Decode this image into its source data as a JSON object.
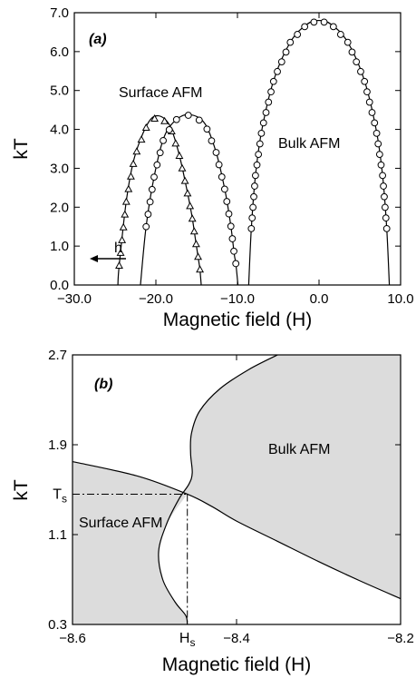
{
  "colors": {
    "fill": "#dcdcdc",
    "line": "#000000",
    "background": "#ffffff"
  },
  "chart_data": [
    {
      "panel": "(a)",
      "type": "line",
      "xlabel": "Magnetic field (H)",
      "ylabel": "kT",
      "xlim": [
        -30,
        10
      ],
      "ylim": [
        0,
        7
      ],
      "x_ticks": [
        "−30.0",
        "−20.0",
        "−10.0",
        "0.0",
        "10.0"
      ],
      "y_ticks": [
        "0.0",
        "1.0",
        "2.0",
        "3.0",
        "4.0",
        "5.0",
        "6.0",
        "7.0"
      ],
      "annotations": [
        "Surface AFM",
        "Bulk AFM",
        "h"
      ],
      "grid": false,
      "series": [
        {
          "marker": "triangle",
          "x": [
            -24.5,
            -23.6,
            -22.6,
            -21.0,
            -19.7,
            -18.3,
            -17.2,
            -16.3,
            -15.6,
            -15.1,
            -14.7,
            -14.6
          ],
          "y": [
            0.5,
            2.2,
            3.3,
            4.15,
            4.35,
            4.1,
            3.4,
            2.55,
            1.8,
            1.1,
            0.55,
            0.4
          ]
        },
        {
          "marker": "circle",
          "x": [
            -21.2,
            -20.2,
            -19.0,
            -17.5,
            -15.8,
            -14.0,
            -12.6,
            -11.5,
            -10.8,
            -10.4,
            -10.2
          ],
          "y": [
            1.5,
            2.8,
            3.8,
            4.25,
            4.38,
            4.15,
            3.4,
            2.4,
            1.5,
            0.8,
            0.55
          ]
        },
        {
          "marker": "circle",
          "x": [
            -8.3,
            -7.8,
            -7.0,
            -5.5,
            -3.5,
            -1.5,
            0.0,
            1.5,
            3.5,
            5.5,
            7.0,
            7.8,
            8.3
          ],
          "y": [
            1.45,
            2.8,
            4.0,
            5.3,
            6.25,
            6.7,
            6.8,
            6.7,
            6.25,
            5.3,
            4.0,
            2.8,
            1.45
          ]
        }
      ]
    },
    {
      "panel": "(b)",
      "type": "area",
      "xlabel": "Magnetic field (H)",
      "ylabel": "kT",
      "xlim": [
        -8.6,
        -8.2
      ],
      "ylim": [
        0.3,
        2.7
      ],
      "x_ticks": [
        "−8.6",
        "−8.4",
        "−8.2"
      ],
      "y_ticks": [
        "0.3",
        "1.1",
        "1.9",
        "2.7"
      ],
      "special_ticks": {
        "x": "H",
        "x_sub": "s",
        "y": "T",
        "y_sub": "s"
      },
      "special_point": {
        "H": -8.46,
        "T": 1.46
      },
      "annotations": [
        "Surface AFM",
        "Bulk AFM"
      ],
      "grid": false,
      "series": [
        {
          "name_hint": "bulk boundary",
          "x": [
            -8.35,
            -8.385,
            -8.42,
            -8.445,
            -8.455,
            -8.456,
            -8.454,
            -8.458,
            -8.47,
            -8.485,
            -8.495,
            -8.49,
            -8.475,
            -8.462,
            -8.46
          ],
          "y": [
            2.7,
            2.57,
            2.4,
            2.2,
            2.0,
            1.82,
            1.65,
            1.55,
            1.42,
            1.2,
            0.95,
            0.7,
            0.5,
            0.38,
            0.3
          ]
        },
        {
          "name_hint": "surface boundary",
          "x": [
            -8.6,
            -8.52,
            -8.46,
            -8.43,
            -8.4,
            -8.35,
            -8.3,
            -8.25,
            -8.2
          ],
          "y": [
            1.75,
            1.62,
            1.46,
            1.35,
            1.22,
            1.04,
            0.86,
            0.69,
            0.53
          ]
        }
      ]
    }
  ]
}
